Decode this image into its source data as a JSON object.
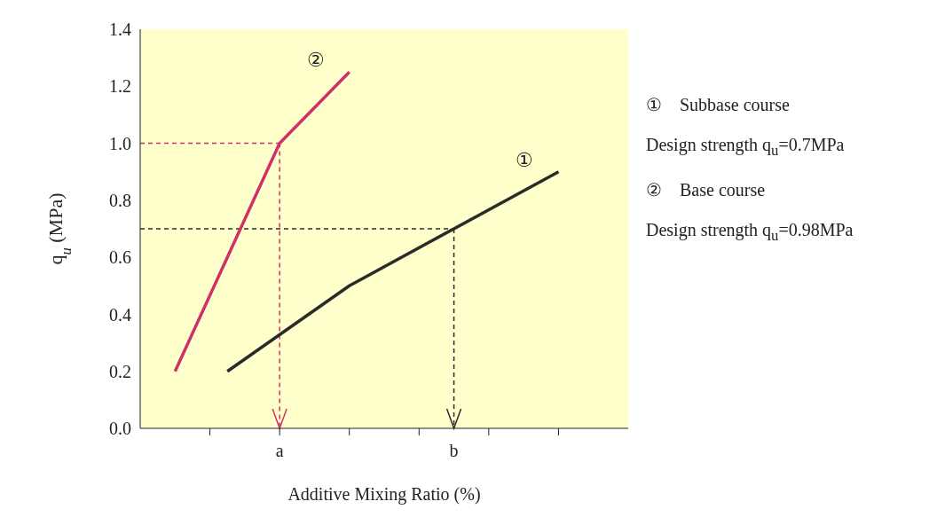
{
  "chart_data": {
    "type": "line",
    "xlabel": "Additive Mixing Ratio (%)",
    "ylabel": "q$_{u}$ (MPa)",
    "categories": [
      null,
      null,
      null,
      null,
      null,
      null,
      null,
      null,
      "a",
      null,
      null,
      null,
      null,
      null,
      null,
      null,
      null,
      null,
      "b",
      null,
      null,
      null,
      null,
      null,
      null,
      null,
      null,
      null,
      null
    ],
    "ylim": [
      0,
      1.4
    ],
    "yticks": [
      {
        "value": 0,
        "label": "0.0"
      },
      0.2,
      0.4,
      0.6,
      0.8,
      {
        "value": 1,
        "label": "1.0"
      },
      1.2,
      1.4
    ],
    "series": [
      {
        "name": "①",
        "color": "#2b2b2b",
        "values": [
          null,
          null,
          null,
          null,
          null,
          0.2,
          null,
          null,
          null,
          null,
          null,
          null,
          0.5,
          null,
          null,
          null,
          null,
          null,
          0.7,
          null,
          null,
          null,
          null,
          null,
          0.9,
          null,
          null,
          null,
          null
        ]
      },
      {
        "name": "②",
        "color": "#d0306a",
        "values": [
          null,
          null,
          0.2,
          null,
          null,
          null,
          null,
          null,
          1.0,
          null,
          null,
          null,
          1.25,
          null,
          null,
          null,
          null,
          null,
          null,
          null,
          null,
          null,
          null,
          null,
          null,
          null,
          null,
          null,
          null
        ]
      }
    ],
    "ref_lines": [
      {
        "axis": "y",
        "value": 1.0,
        "color": "#d0306a",
        "line_style": "dashed"
      },
      {
        "axis": "x",
        "value": "a",
        "color": "#d0306a",
        "line_style": "dashed"
      },
      {
        "axis": "y",
        "value": 0.7,
        "color": "#2b2b2b",
        "line_style": "dashed"
      },
      {
        "axis": "x",
        "value": "b",
        "color": "#2b2b2b",
        "line_style": "dashed"
      }
    ],
    "annotations": [
      "①    Subbase course",
      "Design strength q$_{u}$=0.7MPa",
      "②    Base course",
      "Design strength q$_{u}$=0.98MPa"
    ]
  }
}
